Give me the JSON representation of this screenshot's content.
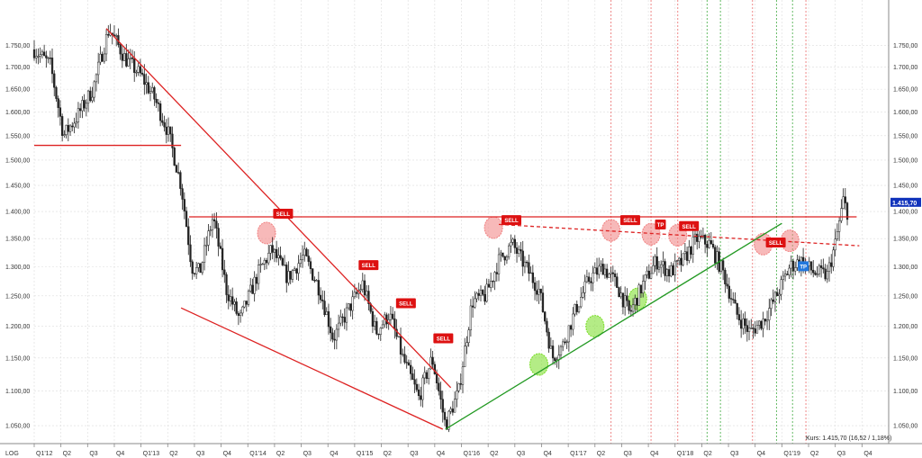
{
  "chart_data": {
    "type": "candlestick",
    "scale_label": "LOG",
    "y_scale": "log",
    "ylim": [
      1025,
      1860
    ],
    "y_ticks": [
      "1.050,00",
      "1.100,00",
      "1.150,00",
      "1.200,00",
      "1.250,00",
      "1.300,00",
      "1.350,00",
      "1.400,00",
      "1.450,00",
      "1.500,00",
      "1.550,00",
      "1.600,00",
      "1.650,00",
      "1.700,00",
      "1.750,00"
    ],
    "y_tick_values": [
      1050,
      1100,
      1150,
      1200,
      1250,
      1300,
      1350,
      1400,
      1450,
      1500,
      1550,
      1600,
      1650,
      1700,
      1750
    ],
    "x_labels": [
      "Q1'12",
      "Q2",
      "Q3",
      "Q4",
      "Q1'13",
      "Q2",
      "Q3",
      "Q4",
      "Q1'14",
      "Q2",
      "Q3",
      "Q4",
      "Q1'15",
      "Q2",
      "Q3",
      "Q4",
      "Q1'16",
      "Q2",
      "Q3",
      "Q4",
      "Q1'17",
      "Q2",
      "Q3",
      "Q4",
      "Q1'18",
      "Q2",
      "Q3",
      "Q4",
      "Q1'19",
      "Q2",
      "Q3",
      "Q4"
    ],
    "price_path": [
      [
        0,
        1740
      ],
      [
        0.6,
        1705
      ],
      [
        1.1,
        1550
      ],
      [
        1.6,
        1590
      ],
      [
        2.2,
        1650
      ],
      [
        2.8,
        1790
      ],
      [
        3.4,
        1720
      ],
      [
        4.0,
        1680
      ],
      [
        4.5,
        1630
      ],
      [
        5.0,
        1560
      ],
      [
        5.5,
        1450
      ],
      [
        5.9,
        1300
      ],
      [
        6.2,
        1290
      ],
      [
        6.7,
        1390
      ],
      [
        7.2,
        1260
      ],
      [
        7.7,
        1210
      ],
      [
        8.4,
        1290
      ],
      [
        8.9,
        1330
      ],
      [
        9.5,
        1280
      ],
      [
        10.1,
        1320
      ],
      [
        10.7,
        1260
      ],
      [
        11.2,
        1180
      ],
      [
        11.8,
        1230
      ],
      [
        12.3,
        1270
      ],
      [
        12.8,
        1190
      ],
      [
        13.3,
        1220
      ],
      [
        13.8,
        1150
      ],
      [
        14.4,
        1090
      ],
      [
        14.9,
        1150
      ],
      [
        15.4,
        1050
      ],
      [
        15.9,
        1100
      ],
      [
        16.4,
        1240
      ],
      [
        16.9,
        1250
      ],
      [
        17.4,
        1310
      ],
      [
        17.9,
        1340
      ],
      [
        18.4,
        1300
      ],
      [
        18.9,
        1260
      ],
      [
        19.4,
        1150
      ],
      [
        19.8,
        1170
      ],
      [
        20.3,
        1230
      ],
      [
        20.8,
        1280
      ],
      [
        21.3,
        1300
      ],
      [
        21.8,
        1270
      ],
      [
        22.3,
        1220
      ],
      [
        22.8,
        1270
      ],
      [
        23.3,
        1310
      ],
      [
        23.8,
        1290
      ],
      [
        24.3,
        1310
      ],
      [
        24.8,
        1350
      ],
      [
        25.3,
        1340
      ],
      [
        25.8,
        1290
      ],
      [
        26.3,
        1220
      ],
      [
        26.8,
        1190
      ],
      [
        27.3,
        1210
      ],
      [
        27.8,
        1250
      ],
      [
        28.3,
        1300
      ],
      [
        28.7,
        1310
      ],
      [
        29.2,
        1290
      ],
      [
        29.7,
        1285
      ],
      [
        30.0,
        1340
      ],
      [
        30.3,
        1420
      ],
      [
        30.45,
        1400
      ]
    ],
    "current_price_label": "1.415,70",
    "info_text": "Kurs: 1.415,70 (16,52 / 1,18%)",
    "lines": [
      {
        "type": "trend",
        "color": "#dd2222",
        "from": [
          2.7,
          1790
        ],
        "to": [
          15.6,
          1105
        ]
      },
      {
        "type": "trend",
        "color": "#dd2222",
        "from": [
          5.5,
          1230
        ],
        "to": [
          15.3,
          1045
        ]
      },
      {
        "type": "horizontal",
        "color": "#dd2222",
        "from": [
          0,
          1530
        ],
        "to": [
          5.5,
          1530
        ]
      },
      {
        "type": "horizontal",
        "color": "#dd2222",
        "from": [
          5.8,
          1390
        ],
        "to": [
          30.8,
          1390
        ]
      },
      {
        "type": "trend-dashed",
        "color": "#dd2222",
        "from": [
          17.4,
          1376
        ],
        "to": [
          30.9,
          1337
        ]
      },
      {
        "type": "trend",
        "color": "#229922",
        "from": [
          15.4,
          1045
        ],
        "to": [
          28.0,
          1378
        ]
      }
    ],
    "vertical_markers": [
      {
        "x": 21.6,
        "color": "#ee8888"
      },
      {
        "x": 23.1,
        "color": "#ee8888"
      },
      {
        "x": 24.1,
        "color": "#ee8888"
      },
      {
        "x": 25.2,
        "color": "#66bb66"
      },
      {
        "x": 25.7,
        "color": "#66bb66"
      },
      {
        "x": 26.9,
        "color": "#ee8888"
      },
      {
        "x": 27.8,
        "color": "#66bb66"
      },
      {
        "x": 28.4,
        "color": "#66bb66"
      },
      {
        "x": 28.9,
        "color": "#ee8888"
      }
    ],
    "highlight_circles": [
      {
        "x": 8.7,
        "y": 1360,
        "color": "#f08080"
      },
      {
        "x": 17.2,
        "y": 1370,
        "color": "#f08080"
      },
      {
        "x": 21.6,
        "y": 1365,
        "color": "#f08080"
      },
      {
        "x": 23.1,
        "y": 1358,
        "color": "#f08080"
      },
      {
        "x": 24.1,
        "y": 1356,
        "color": "#f08080"
      },
      {
        "x": 27.3,
        "y": 1340,
        "color": "#f08080"
      },
      {
        "x": 28.3,
        "y": 1346,
        "color": "#f08080"
      },
      {
        "x": 18.9,
        "y": 1140,
        "color": "#77dd22"
      },
      {
        "x": 21.0,
        "y": 1200,
        "color": "#77dd22"
      },
      {
        "x": 22.6,
        "y": 1245,
        "color": "#77dd22"
      }
    ],
    "signals": [
      {
        "label": "SELL",
        "x": 8.95,
        "y": 1395,
        "color": "#dd1111"
      },
      {
        "label": "SELL",
        "x": 12.15,
        "y": 1302,
        "color": "#dd1111"
      },
      {
        "label": "SELL",
        "x": 13.55,
        "y": 1237,
        "color": "#dd1111"
      },
      {
        "label": "SELL",
        "x": 14.95,
        "y": 1180,
        "color": "#dd1111"
      },
      {
        "label": "SELL",
        "x": 17.5,
        "y": 1383,
        "color": "#dd1111"
      },
      {
        "label": "SELL",
        "x": 21.95,
        "y": 1383,
        "color": "#dd1111"
      },
      {
        "label": "TP",
        "x": 23.25,
        "y": 1375,
        "color": "#dd1111"
      },
      {
        "label": "SELL",
        "x": 24.15,
        "y": 1372,
        "color": "#dd1111"
      },
      {
        "label": "SELL",
        "x": 27.4,
        "y": 1342,
        "color": "#dd1111"
      },
      {
        "label": "TP",
        "x": 28.6,
        "y": 1300,
        "color": "#2277dd"
      }
    ],
    "colors": {
      "candle": "#222222",
      "grid": "#dddddd",
      "price_label_bg": "#1133bb"
    }
  }
}
